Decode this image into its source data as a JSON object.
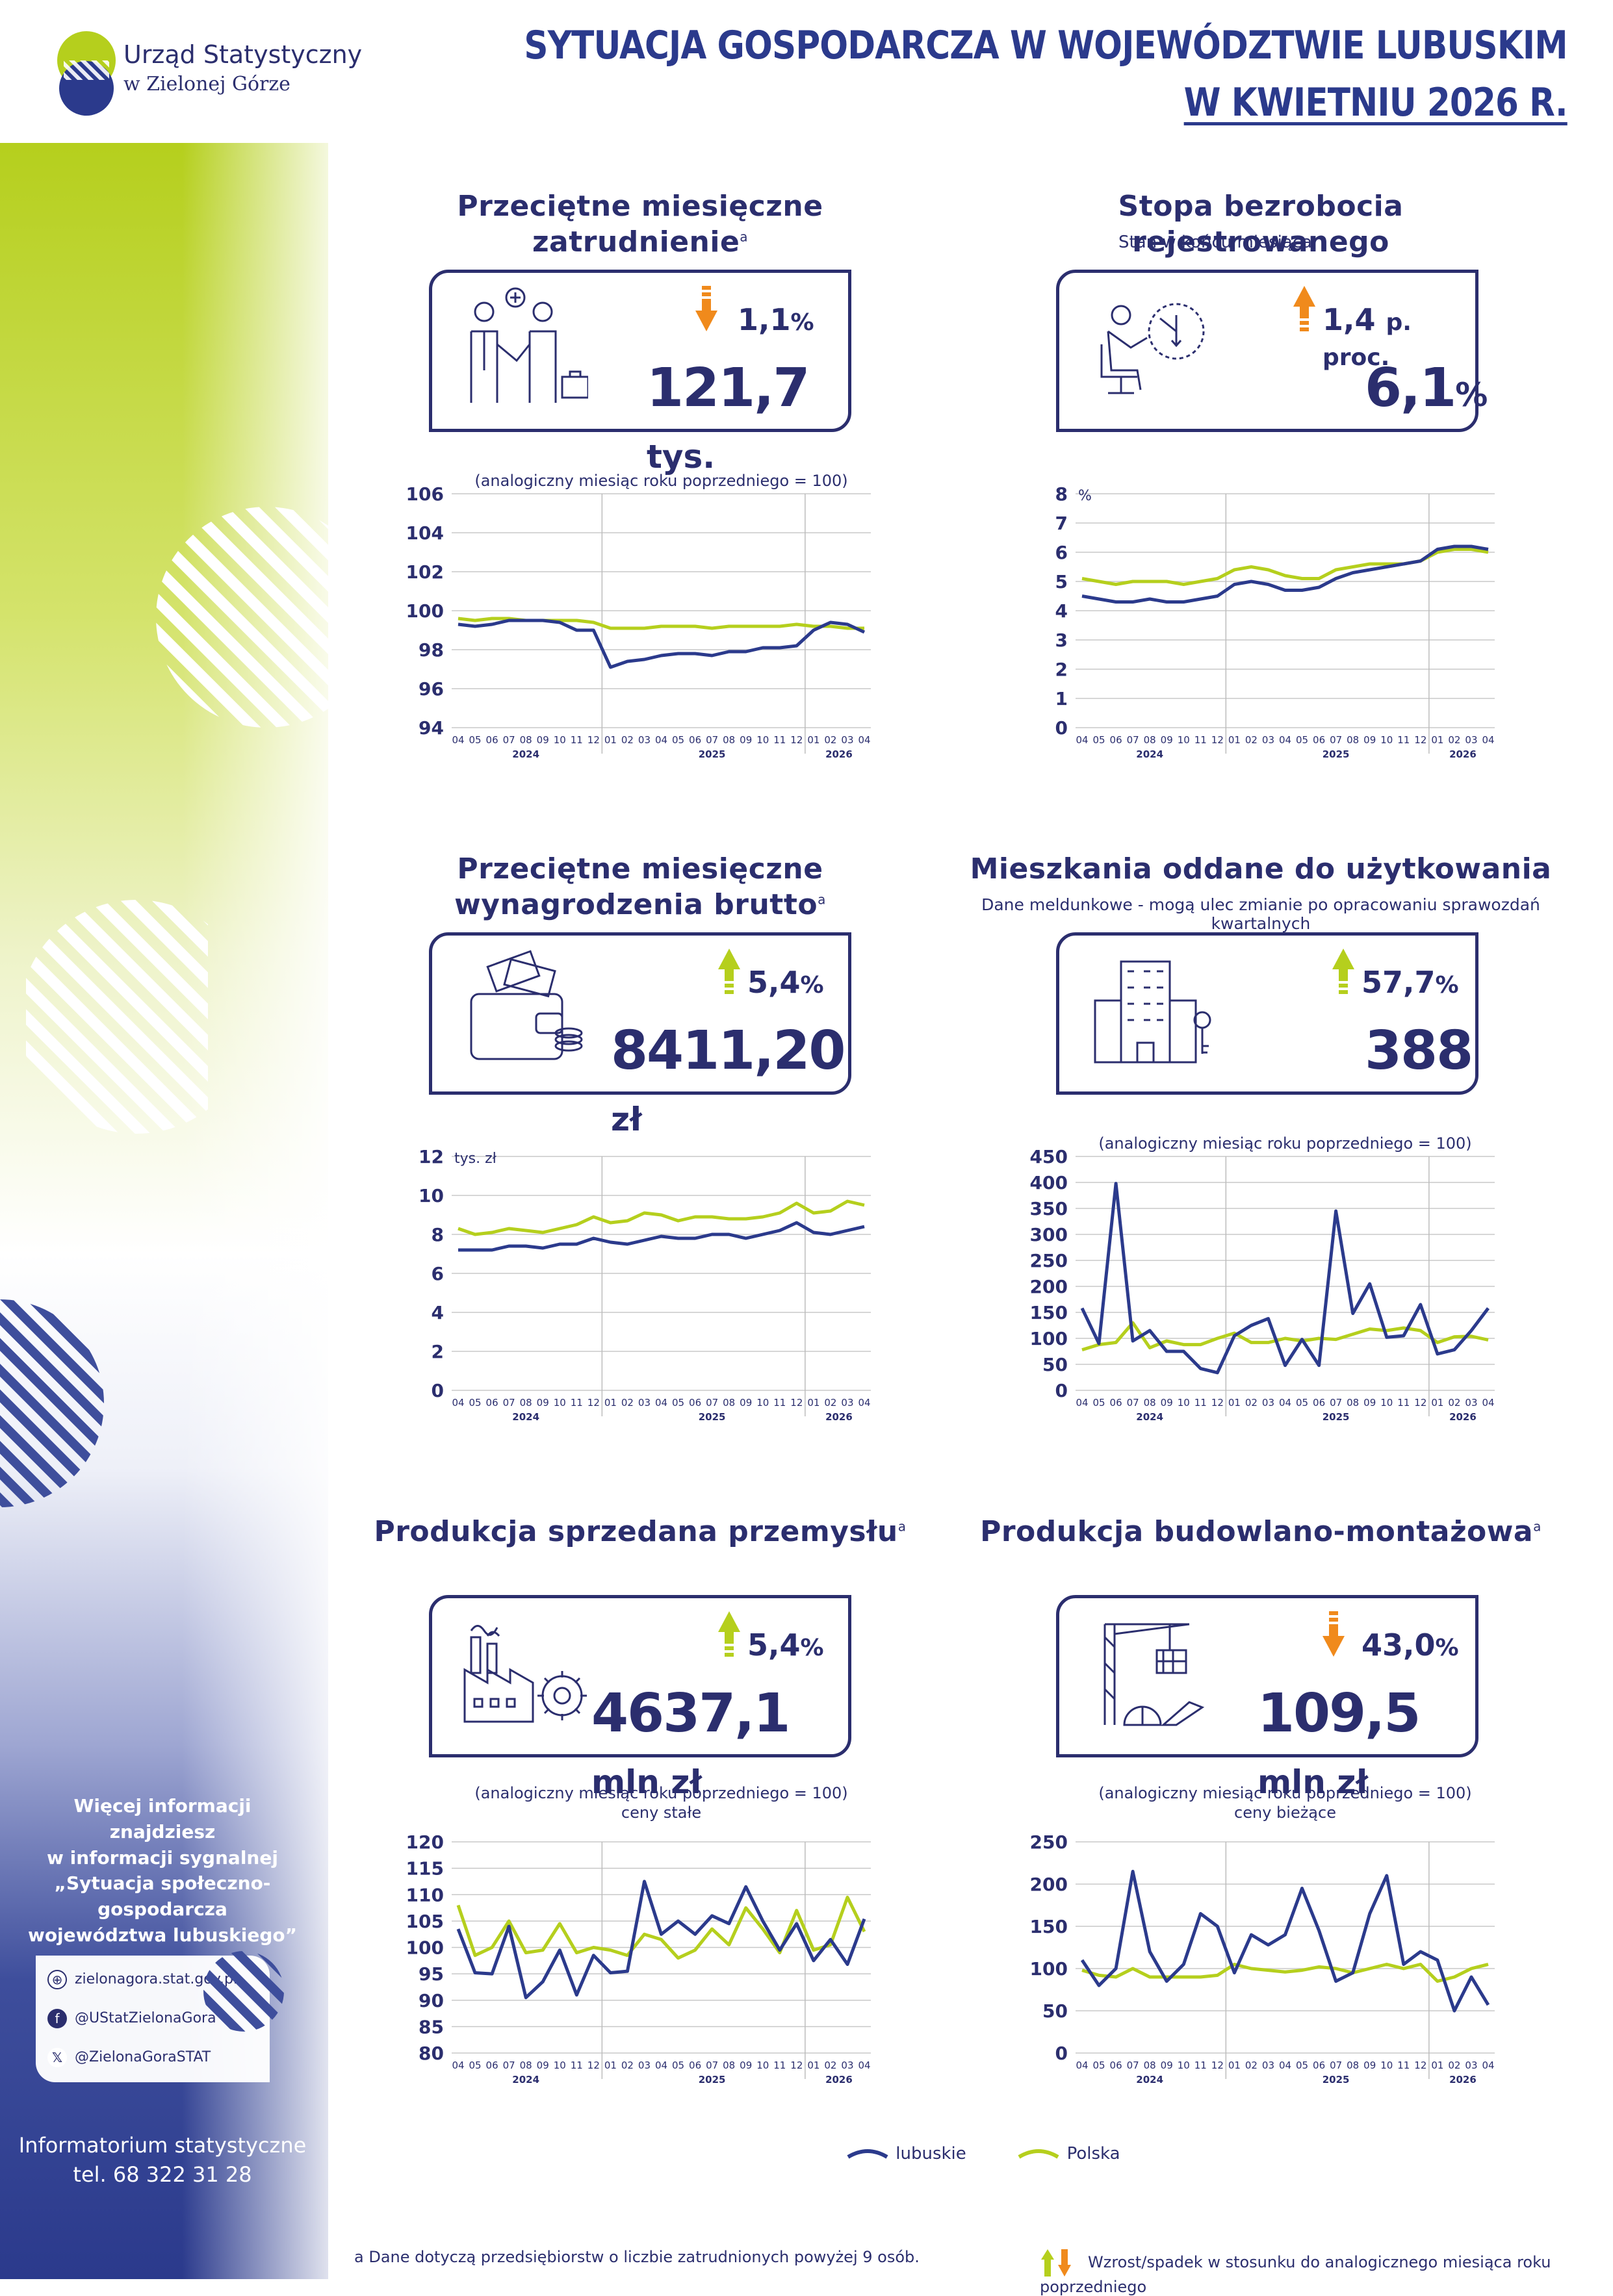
{
  "header": {
    "org_line1": "Urząd Statystyczny",
    "org_line2": "w Zielonej Górze",
    "title_line1": "SYTUACJA GOSPODARCZA W WOJEWÓDZTWIE LUBUSKIM",
    "title_line2": "W KWIETNIU 2026 R."
  },
  "colors": {
    "navy": "#2b2e6e",
    "lime": "#b5cf1d",
    "orange": "#f08a1c",
    "lubuskie": "#2b3a8c",
    "polska": "#b5cf1d"
  },
  "sections": {
    "employment": {
      "title": "Przeciętne miesięczne zatrudnienie",
      "sup": "a",
      "pct": "1,1",
      "pct_unit": "%",
      "direction": "down",
      "value": "121,7",
      "value_unit": "tys.",
      "icon": "handshake-icon"
    },
    "unemployment": {
      "title": "Stopa bezrobocia rejestrowanego",
      "note": "Stan w końcu miesiąca",
      "pct": "1,4",
      "pct_unit": "p. proc.",
      "direction": "up",
      "value": "6,1",
      "value_unit": "%",
      "icon": "waiting-person-icon"
    },
    "wages": {
      "title_line1": "Przeciętne miesięczne",
      "title_line2": "wynagrodzenia brutto",
      "sup": "a",
      "pct": "5,4",
      "pct_unit": "%",
      "direction": "up",
      "value": "8411,20",
      "value_unit": "zł",
      "icon": "wallet-icon"
    },
    "housing": {
      "title": "Mieszkania oddane do użytkowania",
      "note": "Dane meldunkowe - mogą ulec zmianie po opracowaniu sprawozdań kwartalnych",
      "pct": "57,7",
      "pct_unit": "%",
      "direction": "up",
      "value": "388",
      "value_unit": "",
      "icon": "apartment-building-icon"
    },
    "industry": {
      "title": "Produkcja sprzedana przemysłu",
      "sup": "a",
      "pct": "5,4",
      "pct_unit": "%",
      "direction": "up",
      "value": "4637,1",
      "value_unit": "mln zł",
      "icon": "factory-icon"
    },
    "construction": {
      "title": "Produkcja budowlano-montażowa",
      "sup": "a",
      "pct": "43,0",
      "pct_unit": "%",
      "direction": "down",
      "value": "109,5",
      "value_unit": "mln zł",
      "icon": "crane-icon"
    }
  },
  "chart_data": [
    {
      "id": "employment",
      "type": "line",
      "note": "(analogiczny miesiąc roku poprzedniego = 100)",
      "ylabel": "",
      "x": [
        "04",
        "05",
        "06",
        "07",
        "08",
        "09",
        "10",
        "11",
        "12",
        "01",
        "02",
        "03",
        "04",
        "05",
        "06",
        "07",
        "08",
        "09",
        "10",
        "11",
        "12",
        "01",
        "02",
        "03",
        "04"
      ],
      "years": [
        {
          "label": "2024",
          "at": 4
        },
        {
          "label": "2025",
          "at": 15
        },
        {
          "label": "2026",
          "at": 22.5
        }
      ],
      "ylim": [
        94,
        106
      ],
      "yticks": [
        94,
        96,
        98,
        100,
        102,
        104,
        106
      ],
      "series": [
        {
          "name": "lubuskie",
          "values": [
            99.3,
            99.2,
            99.3,
            99.5,
            99.5,
            99.5,
            99.4,
            99.0,
            99.0,
            97.1,
            97.4,
            97.5,
            97.7,
            97.8,
            97.8,
            97.7,
            97.9,
            97.9,
            98.1,
            98.1,
            98.2,
            99.0,
            99.4,
            99.3,
            98.9
          ]
        },
        {
          "name": "Polska",
          "values": [
            99.6,
            99.5,
            99.6,
            99.6,
            99.5,
            99.5,
            99.5,
            99.5,
            99.4,
            99.1,
            99.1,
            99.1,
            99.2,
            99.2,
            99.2,
            99.1,
            99.2,
            99.2,
            99.2,
            99.2,
            99.3,
            99.2,
            99.2,
            99.1,
            99.1
          ]
        }
      ]
    },
    {
      "id": "unemployment",
      "type": "line",
      "note": "",
      "ylabel": "%",
      "x": [
        "04",
        "05",
        "06",
        "07",
        "08",
        "09",
        "10",
        "11",
        "12",
        "01",
        "02",
        "03",
        "04",
        "05",
        "06",
        "07",
        "08",
        "09",
        "10",
        "11",
        "12",
        "01",
        "02",
        "03",
        "04"
      ],
      "years": [
        {
          "label": "2024",
          "at": 4
        },
        {
          "label": "2025",
          "at": 15
        },
        {
          "label": "2026",
          "at": 22.5
        }
      ],
      "ylim": [
        0,
        8
      ],
      "yticks": [
        0,
        1,
        2,
        3,
        4,
        5,
        6,
        7,
        8
      ],
      "series": [
        {
          "name": "lubuskie",
          "values": [
            4.5,
            4.4,
            4.3,
            4.3,
            4.4,
            4.3,
            4.3,
            4.4,
            4.5,
            4.9,
            5.0,
            4.9,
            4.7,
            4.7,
            4.8,
            5.1,
            5.3,
            5.4,
            5.5,
            5.6,
            5.7,
            6.1,
            6.2,
            6.2,
            6.1
          ]
        },
        {
          "name": "Polska",
          "values": [
            5.1,
            5.0,
            4.9,
            5.0,
            5.0,
            5.0,
            4.9,
            5.0,
            5.1,
            5.4,
            5.5,
            5.4,
            5.2,
            5.1,
            5.1,
            5.4,
            5.5,
            5.6,
            5.6,
            5.6,
            5.7,
            6.0,
            6.1,
            6.1,
            6.0
          ]
        }
      ]
    },
    {
      "id": "wages",
      "type": "line",
      "note": "",
      "ylabel": "tys. zł",
      "x": [
        "04",
        "05",
        "06",
        "07",
        "08",
        "09",
        "10",
        "11",
        "12",
        "01",
        "02",
        "03",
        "04",
        "05",
        "06",
        "07",
        "08",
        "09",
        "10",
        "11",
        "12",
        "01",
        "02",
        "03",
        "04"
      ],
      "years": [
        {
          "label": "2024",
          "at": 4
        },
        {
          "label": "2025",
          "at": 15
        },
        {
          "label": "2026",
          "at": 22.5
        }
      ],
      "ylim": [
        0,
        12
      ],
      "yticks": [
        0,
        2,
        4,
        6,
        8,
        10,
        12
      ],
      "series": [
        {
          "name": "lubuskie",
          "values": [
            7.2,
            7.2,
            7.2,
            7.4,
            7.4,
            7.3,
            7.5,
            7.5,
            7.8,
            7.6,
            7.5,
            7.7,
            7.9,
            7.8,
            7.8,
            8.0,
            8.0,
            7.8,
            8.0,
            8.2,
            8.6,
            8.1,
            8.0,
            8.2,
            8.4
          ]
        },
        {
          "name": "Polska",
          "values": [
            8.3,
            8.0,
            8.1,
            8.3,
            8.2,
            8.1,
            8.3,
            8.5,
            8.9,
            8.6,
            8.7,
            9.1,
            9.0,
            8.7,
            8.9,
            8.9,
            8.8,
            8.8,
            8.9,
            9.1,
            9.6,
            9.1,
            9.2,
            9.7,
            9.5
          ]
        }
      ]
    },
    {
      "id": "housing",
      "type": "line",
      "note": "(analogiczny miesiąc roku poprzedniego = 100)",
      "ylabel": "",
      "x": [
        "04",
        "05",
        "06",
        "07",
        "08",
        "09",
        "10",
        "11",
        "12",
        "01",
        "02",
        "03",
        "04",
        "05",
        "06",
        "07",
        "08",
        "09",
        "10",
        "11",
        "12",
        "01",
        "02",
        "03",
        "04"
      ],
      "years": [
        {
          "label": "2024",
          "at": 4
        },
        {
          "label": "2025",
          "at": 15
        },
        {
          "label": "2026",
          "at": 22.5
        }
      ],
      "ylim": [
        0,
        450
      ],
      "yticks": [
        0,
        50,
        100,
        150,
        200,
        250,
        300,
        350,
        400,
        450
      ],
      "series": [
        {
          "name": "lubuskie",
          "values": [
            158,
            90,
            398,
            95,
            115,
            75,
            75,
            42,
            34,
            105,
            125,
            138,
            48,
            98,
            48,
            345,
            148,
            205,
            102,
            105,
            165,
            70,
            78,
            115,
            158
          ]
        },
        {
          "name": "Polska",
          "values": [
            78,
            88,
            92,
            130,
            82,
            95,
            88,
            88,
            100,
            110,
            92,
            92,
            100,
            95,
            100,
            98,
            108,
            118,
            115,
            120,
            115,
            92,
            103,
            104,
            97
          ]
        }
      ]
    },
    {
      "id": "industry",
      "type": "line",
      "note": "(analogiczny miesiąc roku poprzedniego = 100)",
      "note2": "ceny stałe",
      "ylabel": "",
      "x": [
        "04",
        "05",
        "06",
        "07",
        "08",
        "09",
        "10",
        "11",
        "12",
        "01",
        "02",
        "03",
        "04",
        "05",
        "06",
        "07",
        "08",
        "09",
        "10",
        "11",
        "12",
        "01",
        "02",
        "03",
        "04"
      ],
      "years": [
        {
          "label": "2024",
          "at": 4
        },
        {
          "label": "2025",
          "at": 15
        },
        {
          "label": "2026",
          "at": 22.5
        }
      ],
      "ylim": [
        80,
        120
      ],
      "yticks": [
        80,
        85,
        90,
        95,
        100,
        105,
        110,
        115,
        120
      ],
      "series": [
        {
          "name": "lubuskie",
          "values": [
            103.5,
            95.2,
            95.0,
            104.0,
            90.5,
            93.5,
            99.5,
            91.0,
            98.5,
            95.2,
            95.5,
            112.5,
            102.5,
            105.0,
            102.5,
            106.0,
            104.5,
            111.5,
            105.0,
            99.5,
            104.5,
            97.5,
            101.5,
            96.8,
            105.4
          ]
        },
        {
          "name": "Polska",
          "values": [
            108.0,
            98.5,
            100.0,
            105.0,
            99.0,
            99.5,
            104.5,
            99.0,
            100.0,
            99.5,
            98.5,
            102.5,
            101.5,
            98.0,
            99.5,
            103.5,
            100.5,
            107.5,
            103.5,
            99.0,
            107.0,
            99.5,
            100.5,
            109.5,
            103.0
          ]
        }
      ]
    },
    {
      "id": "construction",
      "type": "line",
      "note": "(analogiczny miesiąc roku poprzedniego = 100)",
      "note2": "ceny bieżące",
      "ylabel": "",
      "x": [
        "04",
        "05",
        "06",
        "07",
        "08",
        "09",
        "10",
        "11",
        "12",
        "01",
        "02",
        "03",
        "04",
        "05",
        "06",
        "07",
        "08",
        "09",
        "10",
        "11",
        "12",
        "01",
        "02",
        "03",
        "04"
      ],
      "years": [
        {
          "label": "2024",
          "at": 4
        },
        {
          "label": "2025",
          "at": 15
        },
        {
          "label": "2026",
          "at": 22.5
        }
      ],
      "ylim": [
        0,
        250
      ],
      "yticks": [
        0,
        50,
        100,
        150,
        200,
        250
      ],
      "series": [
        {
          "name": "lubuskie",
          "values": [
            110,
            80,
            100,
            215,
            120,
            85,
            105,
            165,
            150,
            95,
            140,
            128,
            140,
            195,
            145,
            85,
            95,
            165,
            210,
            105,
            120,
            110,
            50,
            90,
            57
          ]
        },
        {
          "name": "Polska",
          "values": [
            98,
            92,
            90,
            100,
            90,
            90,
            90,
            90,
            92,
            105,
            100,
            98,
            96,
            98,
            102,
            100,
            95,
            100,
            105,
            100,
            105,
            85,
            90,
            100,
            105
          ]
        }
      ]
    }
  ],
  "legend": {
    "lubuskie": "lubuskie",
    "polska": "Polska"
  },
  "footnote": "a Dane dotyczą przedsiębiorstw o liczbie zatrudnionych powyżej 9 osób.",
  "trend_note": "Wzrost/spadek w stosunku do analogicznego miesiąca roku poprzedniego",
  "sidebar": {
    "info_line1": "Więcej informacji znajdziesz",
    "info_line2": "w informacji sygnalnej",
    "info_line3": "„Sytuacja społeczno-gospodarcza",
    "info_line4": "województwa lubuskiego”",
    "web": "zielonagora.stat.gov.pl",
    "facebook": "@UStatZielonaGora",
    "x": "@ZielonaGoraSTAT",
    "phone_line1": "Informatorium statystyczne",
    "phone_line2": "tel. 68 322 31 28"
  }
}
